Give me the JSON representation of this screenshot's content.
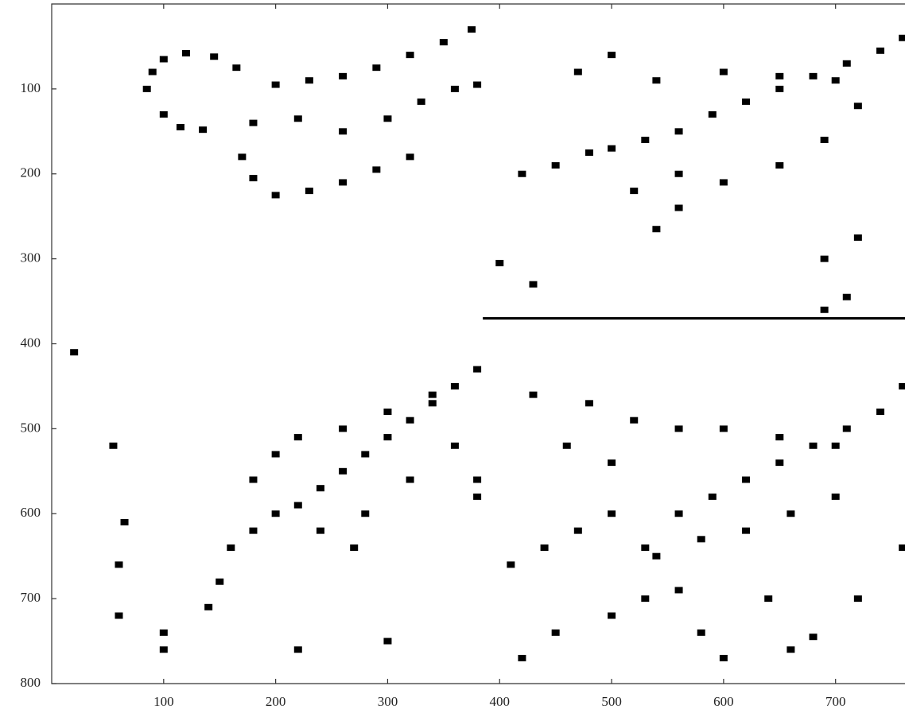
{
  "chart_data": {
    "type": "image",
    "xlim": [
      0,
      762
    ],
    "ylim": [
      800,
      0
    ],
    "xticks": [
      100,
      200,
      300,
      400,
      500,
      600,
      700
    ],
    "yticks": [
      100,
      200,
      300,
      400,
      500,
      600,
      700,
      800
    ],
    "color": "#000000",
    "series": [
      {
        "style": "points",
        "x": [
          85,
          90,
          100,
          120,
          145,
          165,
          100,
          115,
          135,
          200,
          230,
          260,
          290,
          320,
          350,
          375,
          180,
          220,
          260,
          300,
          330,
          360,
          380,
          170,
          180,
          200,
          230,
          260,
          290,
          320,
          420,
          450,
          480,
          500,
          530,
          560,
          590,
          620,
          650,
          680,
          710,
          740,
          760,
          540,
          600,
          650,
          700,
          720,
          560,
          600,
          650,
          690,
          470,
          500,
          520,
          560,
          540,
          690,
          720,
          710,
          690,
          400,
          430,
          160,
          180,
          200,
          220,
          240,
          260,
          280,
          300,
          320,
          340,
          360,
          380,
          180,
          200,
          220,
          260,
          300,
          340,
          240,
          280,
          320,
          360,
          270,
          150,
          140,
          100,
          65,
          55,
          20,
          60,
          60,
          100,
          220,
          300,
          380,
          380,
          410,
          440,
          470,
          500,
          530,
          560,
          590,
          620,
          650,
          680,
          710,
          740,
          760,
          540,
          580,
          620,
          660,
          700,
          530,
          560,
          500,
          450,
          680,
          660,
          600,
          420,
          430,
          480,
          520,
          560,
          600,
          650,
          700,
          760,
          640,
          720,
          580,
          460,
          500
        ],
        "y": [
          100,
          80,
          65,
          58,
          62,
          75,
          130,
          145,
          148,
          95,
          90,
          85,
          75,
          60,
          45,
          30,
          140,
          135,
          150,
          135,
          115,
          100,
          95,
          180,
          205,
          225,
          220,
          210,
          195,
          180,
          200,
          190,
          175,
          170,
          160,
          150,
          130,
          115,
          100,
          85,
          70,
          55,
          40,
          90,
          80,
          85,
          90,
          120,
          200,
          210,
          190,
          160,
          80,
          60,
          220,
          240,
          265,
          300,
          275,
          345,
          360,
          305,
          330,
          640,
          620,
          600,
          590,
          570,
          550,
          530,
          510,
          490,
          470,
          450,
          430,
          560,
          530,
          510,
          500,
          480,
          460,
          620,
          600,
          560,
          520,
          640,
          680,
          710,
          740,
          610,
          520,
          410,
          660,
          720,
          760,
          760,
          750,
          560,
          580,
          660,
          640,
          620,
          600,
          640,
          600,
          580,
          560,
          540,
          520,
          500,
          480,
          450,
          650,
          630,
          620,
          600,
          580,
          700,
          690,
          720,
          740,
          745,
          760,
          770,
          770,
          460,
          470,
          490,
          500,
          500,
          510,
          520,
          640,
          700,
          700,
          740,
          520,
          540
        ]
      },
      {
        "style": "line",
        "x": [
          385,
          762
        ],
        "y": [
          370,
          370
        ]
      }
    ]
  }
}
